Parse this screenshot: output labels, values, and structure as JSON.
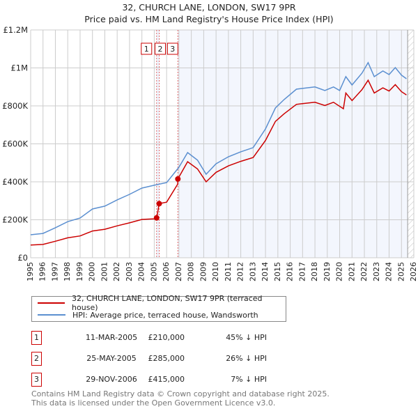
{
  "chart_data": {
    "type": "line",
    "title": "32, CHURCH LANE, LONDON, SW17 9PR",
    "subtitle": "Price paid vs. HM Land Registry's House Price Index (HPI)",
    "xlim": [
      1995,
      2026
    ],
    "ylim": [
      0,
      1200000
    ],
    "grid": true,
    "x_ticks": [
      "1995",
      "1996",
      "1997",
      "1998",
      "1999",
      "2000",
      "2001",
      "2002",
      "2003",
      "2004",
      "2005",
      "2006",
      "2007",
      "2008",
      "2009",
      "2010",
      "2011",
      "2012",
      "2013",
      "2014",
      "2015",
      "2016",
      "2017",
      "2018",
      "2019",
      "2020",
      "2021",
      "2022",
      "2023",
      "2024",
      "2025",
      "2026"
    ],
    "y_ticks": [
      {
        "v": 0,
        "label": "£0"
      },
      {
        "v": 200000,
        "label": "£200K"
      },
      {
        "v": 400000,
        "label": "£400K"
      },
      {
        "v": 600000,
        "label": "£600K"
      },
      {
        "v": 800000,
        "label": "£800K"
      },
      {
        "v": 1000000,
        "label": "£1M"
      },
      {
        "v": 1200000,
        "label": "£1.2M"
      }
    ],
    "series": [
      {
        "name": "32, CHURCH LANE, LONDON, SW17 9PR (terraced house)",
        "color": "#cc0000",
        "x": [
          1995,
          1996,
          1997,
          1998,
          1999,
          2000,
          2001,
          2002,
          2003,
          2004,
          2005,
          2005.19,
          2005.2,
          2005.4,
          2006,
          2006.9,
          2006.91,
          2007.7,
          2008.5,
          2009.2,
          2010,
          2011,
          2012,
          2013,
          2014,
          2014.8,
          2015.5,
          2016.5,
          2017,
          2018,
          2018.8,
          2019.5,
          2020.3,
          2020.5,
          2021,
          2021.8,
          2022.3,
          2022.8,
          2023.5,
          2024,
          2024.5,
          2025,
          2025.4
        ],
        "y": [
          67000,
          70000,
          87000,
          105000,
          115000,
          141000,
          150000,
          168000,
          184000,
          202000,
          205000,
          210000,
          210000,
          285000,
          293000,
          388000,
          415000,
          506000,
          468000,
          400000,
          450000,
          484000,
          508000,
          528000,
          618000,
          718000,
          758000,
          808000,
          812000,
          819000,
          802000,
          819000,
          785000,
          868000,
          828000,
          885000,
          935000,
          868000,
          895000,
          878000,
          912000,
          875000,
          858000
        ]
      },
      {
        "name": "HPI: Average price, terraced house, Wandsworth",
        "color": "#5b8fd0",
        "x": [
          1995,
          1996,
          1997,
          1998,
          1999,
          2000,
          2001,
          2002,
          2003,
          2004,
          2005,
          2006,
          2007,
          2007.7,
          2008.5,
          2009.2,
          2010,
          2011,
          2012,
          2013,
          2014,
          2014.8,
          2015.5,
          2016.5,
          2017,
          2018,
          2018.8,
          2019.5,
          2020,
          2020.5,
          2021,
          2021.8,
          2022.3,
          2022.8,
          2023.5,
          2024,
          2024.5,
          2025,
          2025.4
        ],
        "y": [
          121000,
          128000,
          158000,
          190000,
          209000,
          257000,
          272000,
          305000,
          334000,
          367000,
          382000,
          396000,
          477000,
          554000,
          514000,
          440000,
          495000,
          532000,
          558000,
          580000,
          679000,
          789000,
          833000,
          888000,
          892000,
          900000,
          881000,
          900000,
          881000,
          954000,
          910000,
          972000,
          1028000,
          954000,
          984000,
          965000,
          1002000,
          962000,
          943000
        ]
      }
    ],
    "sales": [
      {
        "id": "1",
        "x": 2005.19,
        "y": 210000
      },
      {
        "id": "2",
        "x": 2005.4,
        "y": 285000
      },
      {
        "id": "3",
        "x": 2006.91,
        "y": 415000
      }
    ],
    "data_end": 2025.5
  },
  "legend": {
    "property": "32, CHURCH LANE, LONDON, SW17 9PR (terraced house)",
    "hpi": "HPI: Average price, terraced house, Wandsworth"
  },
  "transactions": [
    {
      "id": "1",
      "date": "11-MAR-2005",
      "price": "£210,000",
      "hpi": "45% ↓ HPI"
    },
    {
      "id": "2",
      "date": "25-MAY-2005",
      "price": "£285,000",
      "hpi": "26% ↓ HPI"
    },
    {
      "id": "3",
      "date": "29-NOV-2006",
      "price": "£415,000",
      "hpi": "7% ↓ HPI"
    }
  ],
  "footer": {
    "line1": "Contains HM Land Registry data © Crown copyright and database right 2025.",
    "line2": "This data is licensed under the Open Government Licence v3.0."
  }
}
